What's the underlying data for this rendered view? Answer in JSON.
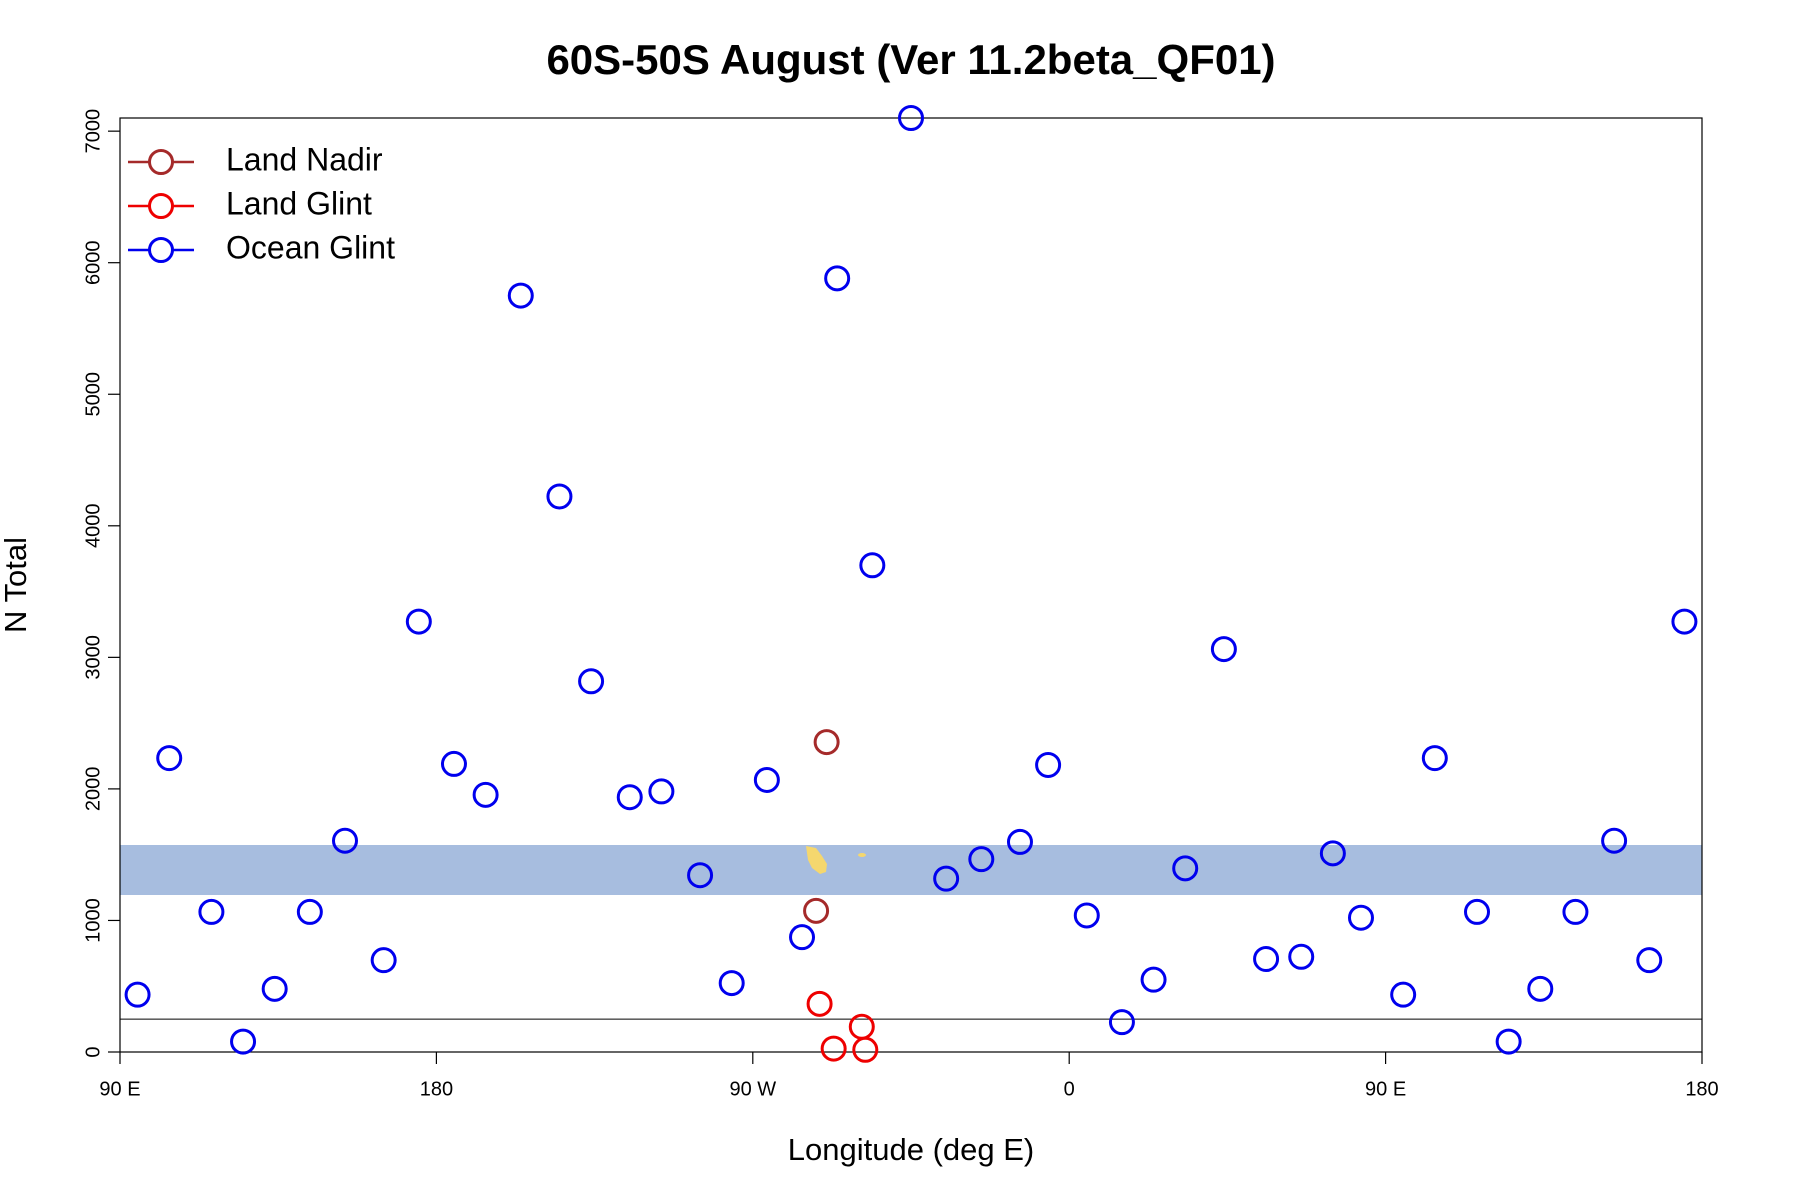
{
  "chart_data": {
    "type": "scatter",
    "title": "60S-50S August (Ver 11.2beta_QF01)",
    "x_label": "Longitude (deg E)",
    "y_label": "N Total",
    "xlim": [
      90,
      540
    ],
    "xticks": [
      {
        "value": 90,
        "label": "90 E"
      },
      {
        "value": 180,
        "label": "180"
      },
      {
        "value": 270,
        "label": "90 W"
      },
      {
        "value": 360,
        "label": "0"
      },
      {
        "value": 450,
        "label": "90 E"
      },
      {
        "value": 540,
        "label": "180"
      }
    ],
    "ylim": [
      0,
      7100
    ],
    "yticks": [
      0,
      1000,
      2000,
      3000,
      4000,
      5000,
      6000,
      7000
    ],
    "hline": 250,
    "legend": "topleft",
    "series": [
      {
        "name": "Land Nadir",
        "color": "#a52a2a",
        "x": [
          291,
          288
        ],
        "values": [
          2356,
          1073
        ]
      },
      {
        "name": "Land Glint",
        "color": "#ee0000",
        "x": [
          289,
          301,
          293,
          302
        ],
        "values": [
          366,
          192,
          26,
          17
        ]
      },
      {
        "name": "Ocean Glint",
        "color": "#0000ee",
        "x": [
          95,
          104,
          116,
          125,
          134,
          144,
          154,
          165,
          175,
          185,
          194,
          204,
          215,
          224,
          235,
          244,
          255,
          264,
          274,
          284,
          294,
          304,
          315,
          325,
          335,
          346,
          354,
          365,
          375,
          384,
          393,
          404,
          416,
          426,
          435,
          443,
          455,
          464,
          476,
          485,
          494,
          504,
          515,
          525,
          535
        ],
        "values": [
          436,
          2234,
          1065,
          79,
          480,
          1065,
          1606,
          698,
          3272,
          2190,
          1955,
          5750,
          4223,
          2818,
          1937,
          1981,
          1344,
          524,
          2068,
          873,
          5881,
          3700,
          7100,
          1318,
          1466,
          1597,
          2182,
          1038,
          227,
          550,
          1396,
          3063,
          707,
          724,
          1510,
          1021,
          436,
          2234,
          1065,
          79,
          480,
          1065,
          1606,
          698,
          3272
        ]
      }
    ]
  }
}
